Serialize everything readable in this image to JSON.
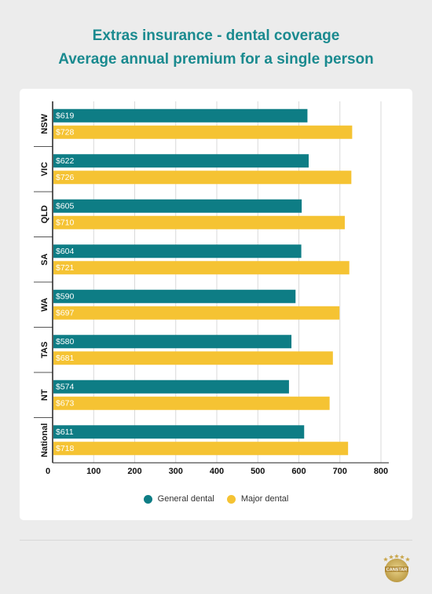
{
  "title": "Extras insurance - dental coverage",
  "subtitle": "Average annual premium for a single person",
  "colors": {
    "title": "#1a8a8f",
    "general": "#0e7d85",
    "major": "#f5c333",
    "grid": "#d9d9d9",
    "axis": "#222222"
  },
  "legend": {
    "general": "General dental",
    "major": "Major dental"
  },
  "logo": {
    "text": "CANSTAR",
    "icon": "canstar-star-logo"
  },
  "chart_data": {
    "type": "bar",
    "orientation": "horizontal",
    "categories": [
      "NSW",
      "VIC",
      "QLD",
      "SA",
      "WA",
      "TAS",
      "NT",
      "National"
    ],
    "series": [
      {
        "name": "General dental",
        "values": [
          619,
          622,
          605,
          604,
          590,
          580,
          574,
          611
        ],
        "labels": [
          "$619",
          "$622",
          "$605",
          "$604",
          "$590",
          "$580",
          "$574",
          "$611"
        ]
      },
      {
        "name": "Major dental",
        "values": [
          728,
          726,
          710,
          721,
          697,
          681,
          673,
          718
        ],
        "labels": [
          "$728",
          "$726",
          "$710",
          "$721",
          "$697",
          "$681",
          "$673",
          "$718"
        ]
      }
    ],
    "xticks": [
      "0",
      "100",
      "200",
      "300",
      "400",
      "500",
      "600",
      "700",
      "800"
    ],
    "xlim": [
      0,
      800
    ],
    "grid": true,
    "legend_position": "bottom"
  }
}
